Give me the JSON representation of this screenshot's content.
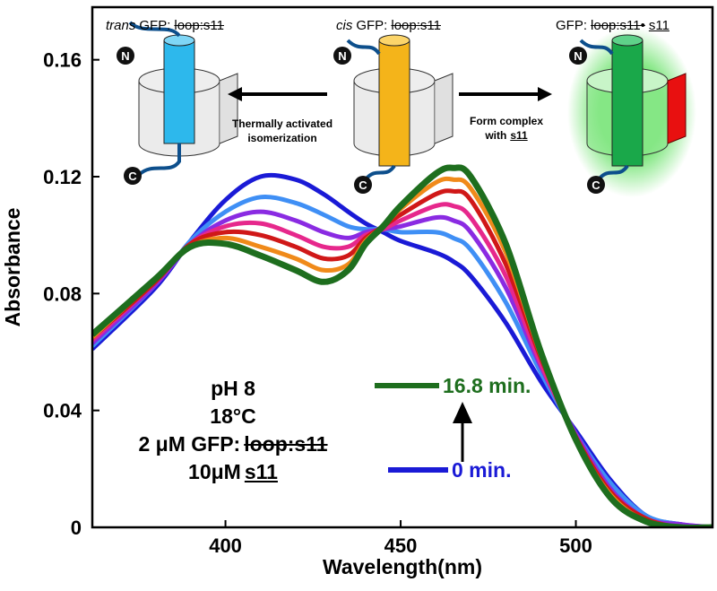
{
  "chart_data": {
    "type": "line",
    "xlabel": "Wavelength(nm)",
    "ylabel": "Absorbance",
    "x": [
      362,
      380,
      390,
      400,
      410,
      420,
      428,
      435,
      440,
      445,
      450,
      460,
      465,
      470,
      480,
      490,
      500,
      510,
      520,
      530,
      539
    ],
    "xlim": [
      362,
      539
    ],
    "xticks": [
      400,
      450,
      500
    ],
    "ylim": [
      0,
      0.178
    ],
    "yticks": [
      0,
      0.04,
      0.08,
      0.12,
      0.16
    ],
    "series": [
      {
        "name": "0 min.",
        "color": "#1a1ad6",
        "values": [
          0.061,
          0.082,
          0.098,
          0.112,
          0.12,
          0.119,
          0.114,
          0.108,
          0.104,
          0.101,
          0.098,
          0.094,
          0.091,
          0.086,
          0.07,
          0.05,
          0.033,
          0.016,
          0.004,
          0.001,
          0.0
        ]
      },
      {
        "color": "#3f8ff5",
        "values": [
          0.062,
          0.083,
          0.098,
          0.108,
          0.113,
          0.111,
          0.107,
          0.103,
          0.102,
          0.102,
          0.101,
          0.101,
          0.099,
          0.095,
          0.077,
          0.053,
          0.032,
          0.015,
          0.004,
          0.001,
          0.0
        ]
      },
      {
        "color": "#8a2be2",
        "values": [
          0.063,
          0.083,
          0.097,
          0.105,
          0.108,
          0.105,
          0.101,
          0.099,
          0.101,
          0.102,
          0.103,
          0.106,
          0.105,
          0.101,
          0.082,
          0.055,
          0.032,
          0.013,
          0.003,
          0.001,
          0.0
        ]
      },
      {
        "color": "#e6288c",
        "values": [
          0.064,
          0.084,
          0.097,
          0.103,
          0.104,
          0.1,
          0.096,
          0.096,
          0.1,
          0.102,
          0.105,
          0.11,
          0.11,
          0.106,
          0.086,
          0.056,
          0.031,
          0.012,
          0.003,
          0.0,
          0.0
        ]
      },
      {
        "color": "#d01818",
        "values": [
          0.065,
          0.084,
          0.097,
          0.101,
          0.1,
          0.096,
          0.092,
          0.093,
          0.099,
          0.103,
          0.107,
          0.114,
          0.115,
          0.112,
          0.09,
          0.058,
          0.031,
          0.012,
          0.003,
          0.0,
          0.0
        ]
      },
      {
        "color": "#f08a1a",
        "values": [
          0.065,
          0.085,
          0.096,
          0.099,
          0.096,
          0.092,
          0.088,
          0.09,
          0.098,
          0.103,
          0.109,
          0.118,
          0.119,
          0.116,
          0.094,
          0.059,
          0.03,
          0.011,
          0.002,
          0.0,
          0.0
        ]
      },
      {
        "name": "16.8 min.",
        "color": "#1e6e1e",
        "values": [
          0.066,
          0.085,
          0.096,
          0.097,
          0.093,
          0.088,
          0.084,
          0.088,
          0.097,
          0.103,
          0.11,
          0.121,
          0.123,
          0.12,
          0.097,
          0.06,
          0.03,
          0.01,
          0.002,
          0.0,
          0.0
        ]
      }
    ],
    "conditions": [
      [
        {
          "text": "pH 8"
        }
      ],
      [
        {
          "text": "18°C"
        }
      ],
      [
        {
          "text": "2 μM GFP:"
        },
        {
          "text": "loop:s11",
          "format": "strike"
        }
      ],
      [
        {
          "text": "10μM"
        },
        {
          "text": "s11",
          "format": "underline"
        }
      ]
    ]
  },
  "schematic": {
    "states": [
      [
        {
          "text": "trans",
          "format": "italic"
        },
        {
          "text": "GFP:"
        },
        {
          "text": "loop:s11",
          "format": "strike"
        }
      ],
      [
        {
          "text": "cis",
          "format": "italic"
        },
        {
          "text": "GFP:"
        },
        {
          "text": "loop:s11",
          "format": "strike"
        }
      ],
      [
        {
          "text": "GFP:"
        },
        {
          "text": "loop:s11•",
          "format": "strike"
        },
        {
          "text": "s11",
          "format": "underline"
        }
      ]
    ],
    "arrows": [
      [
        [
          {
            "text": "Thermally activated"
          }
        ],
        [
          {
            "text": "isomerization"
          }
        ]
      ],
      [
        [
          {
            "text": "Form complex"
          }
        ],
        [
          {
            "text": "with"
          },
          {
            "text": "s11",
            "format": "underline"
          }
        ]
      ]
    ],
    "termini": [
      "N",
      "C"
    ]
  }
}
